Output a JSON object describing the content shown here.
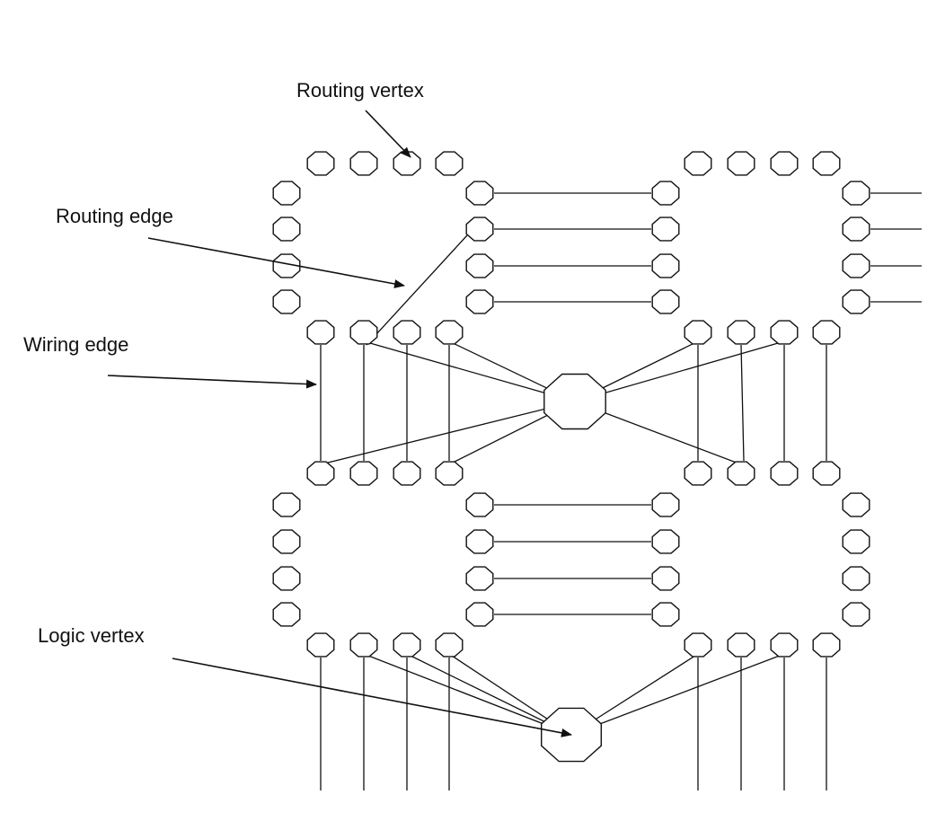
{
  "annotations": {
    "routing_vertex": "Routing vertex",
    "routing_edge": "Routing edge",
    "wiring_edge": "Wiring edge",
    "logic_vertex": "Logic vertex"
  }
}
